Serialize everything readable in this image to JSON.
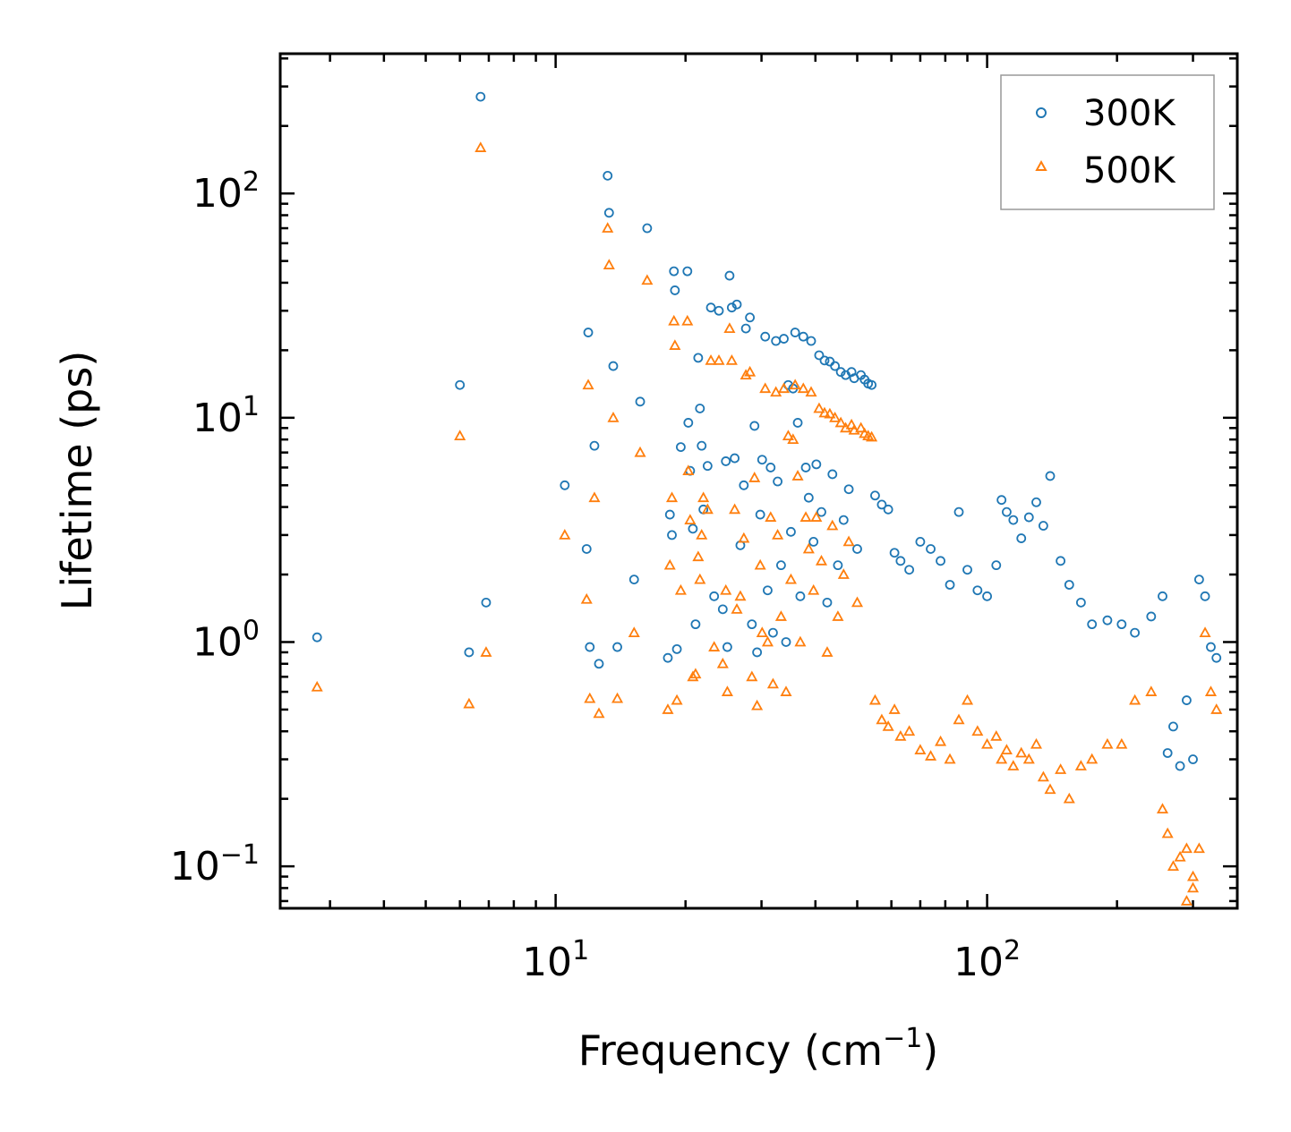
{
  "chart_data": {
    "type": "scatter",
    "title": "",
    "xlabel": "Frequency (cm",
    "xlabel_sup": "−1",
    "xlabel_end": ")",
    "ylabel": "Lifetime (ps)",
    "xscale": "log",
    "yscale": "log",
    "xlim": [
      2.3,
      380
    ],
    "ylim": [
      0.065,
      420
    ],
    "x_tick_labels": [
      {
        "base": "10",
        "exp": "1",
        "value": 10
      },
      {
        "base": "10",
        "exp": "2",
        "value": 100
      }
    ],
    "y_tick_labels": [
      {
        "base": "10",
        "exp": "−1",
        "value": 0.1
      },
      {
        "base": "10",
        "exp": "0",
        "value": 1
      },
      {
        "base": "10",
        "exp": "1",
        "value": 10
      },
      {
        "base": "10",
        "exp": "2",
        "value": 100
      }
    ],
    "legend_position": "top-right",
    "series": [
      {
        "name": "300K",
        "marker": "circle",
        "color": "#1f77b4",
        "points": [
          [
            2.8,
            1.05
          ],
          [
            6.0,
            14
          ],
          [
            6.3,
            0.9
          ],
          [
            6.7,
            270
          ],
          [
            6.9,
            1.5
          ],
          [
            10.5,
            5
          ],
          [
            11.8,
            2.6
          ],
          [
            11.9,
            24
          ],
          [
            12.0,
            0.95
          ],
          [
            12.3,
            7.5
          ],
          [
            12.6,
            0.8
          ],
          [
            13.2,
            120
          ],
          [
            13.3,
            82
          ],
          [
            13.6,
            17
          ],
          [
            13.9,
            0.95
          ],
          [
            15.2,
            1.9
          ],
          [
            15.7,
            11.8
          ],
          [
            16.3,
            70
          ],
          [
            18.2,
            0.85
          ],
          [
            18.4,
            3.7
          ],
          [
            18.6,
            3
          ],
          [
            18.8,
            45
          ],
          [
            18.9,
            37
          ],
          [
            19.1,
            0.93
          ],
          [
            19.5,
            7.4
          ],
          [
            20.2,
            45
          ],
          [
            20.3,
            9.5
          ],
          [
            20.5,
            5.8
          ],
          [
            20.8,
            3.2
          ],
          [
            21.1,
            1.2
          ],
          [
            21.4,
            18.5
          ],
          [
            21.6,
            11
          ],
          [
            21.8,
            7.5
          ],
          [
            22.0,
            3.9
          ],
          [
            22.5,
            6.1
          ],
          [
            22.9,
            31
          ],
          [
            23.3,
            1.6
          ],
          [
            23.9,
            30
          ],
          [
            24.4,
            1.4
          ],
          [
            24.8,
            6.4
          ],
          [
            25.0,
            0.95
          ],
          [
            25.3,
            43
          ],
          [
            25.6,
            31
          ],
          [
            26.0,
            6.6
          ],
          [
            26.3,
            32
          ],
          [
            26.8,
            2.7
          ],
          [
            27.3,
            5
          ],
          [
            27.6,
            25
          ],
          [
            28.2,
            28
          ],
          [
            28.5,
            1.2
          ],
          [
            28.9,
            9.2
          ],
          [
            29.3,
            0.9
          ],
          [
            29.8,
            3.7
          ],
          [
            30.1,
            6.5
          ],
          [
            30.6,
            23
          ],
          [
            31.0,
            1.7
          ],
          [
            31.5,
            6
          ],
          [
            31.9,
            1.1
          ],
          [
            32.4,
            22
          ],
          [
            32.7,
            5.2
          ],
          [
            33.3,
            2.2
          ],
          [
            33.8,
            22.5
          ],
          [
            34.2,
            1
          ],
          [
            34.6,
            14
          ],
          [
            35.1,
            3.1
          ],
          [
            35.5,
            13.5
          ],
          [
            35.9,
            24
          ],
          [
            36.4,
            9.5
          ],
          [
            36.9,
            1.6
          ],
          [
            37.5,
            23
          ],
          [
            38.0,
            6
          ],
          [
            38.6,
            4.4
          ],
          [
            39.1,
            22
          ],
          [
            39.6,
            2.8
          ],
          [
            40.2,
            6.2
          ],
          [
            40.8,
            19
          ],
          [
            41.3,
            3.8
          ],
          [
            42.0,
            18
          ],
          [
            42.6,
            1.5
          ],
          [
            43.2,
            17.8
          ],
          [
            43.8,
            5.6
          ],
          [
            44.4,
            17
          ],
          [
            45.1,
            2.2
          ],
          [
            45.8,
            16
          ],
          [
            46.5,
            3.5
          ],
          [
            47.0,
            15.5
          ],
          [
            47.8,
            4.8
          ],
          [
            48.5,
            16
          ],
          [
            49.2,
            15
          ],
          [
            50.0,
            2.6
          ],
          [
            51.0,
            15.5
          ],
          [
            52.0,
            14.8
          ],
          [
            53.0,
            14.2
          ],
          [
            54.0,
            14
          ],
          [
            55,
            4.5
          ],
          [
            57,
            4.1
          ],
          [
            59,
            3.9
          ],
          [
            61,
            2.5
          ],
          [
            63,
            2.3
          ],
          [
            66,
            2.1
          ],
          [
            70,
            2.8
          ],
          [
            74,
            2.6
          ],
          [
            78,
            2.3
          ],
          [
            82,
            1.8
          ],
          [
            86,
            3.8
          ],
          [
            90,
            2.1
          ],
          [
            95,
            1.7
          ],
          [
            100,
            1.6
          ],
          [
            105,
            2.2
          ],
          [
            108,
            4.3
          ],
          [
            111,
            3.8
          ],
          [
            115,
            3.5
          ],
          [
            120,
            2.9
          ],
          [
            125,
            3.6
          ],
          [
            130,
            4.2
          ],
          [
            135,
            3.3
          ],
          [
            140,
            5.5
          ],
          [
            148,
            2.3
          ],
          [
            155,
            1.8
          ],
          [
            165,
            1.5
          ],
          [
            175,
            1.2
          ],
          [
            190,
            1.25
          ],
          [
            205,
            1.2
          ],
          [
            220,
            1.1
          ],
          [
            240,
            1.3
          ],
          [
            255,
            1.6
          ],
          [
            262,
            0.32
          ],
          [
            270,
            0.42
          ],
          [
            280,
            0.28
          ],
          [
            290,
            0.55
          ],
          [
            300,
            0.3
          ],
          [
            310,
            1.9
          ],
          [
            320,
            1.6
          ],
          [
            330,
            0.95
          ],
          [
            340,
            0.85
          ]
        ]
      },
      {
        "name": "500K",
        "marker": "triangle",
        "color": "#ff7f0e",
        "points": [
          [
            2.8,
            0.63
          ],
          [
            6.0,
            8.3
          ],
          [
            6.3,
            0.53
          ],
          [
            6.7,
            160
          ],
          [
            6.9,
            0.9
          ],
          [
            10.5,
            3
          ],
          [
            11.8,
            1.55
          ],
          [
            11.9,
            14
          ],
          [
            12.0,
            0.56
          ],
          [
            12.3,
            4.4
          ],
          [
            12.6,
            0.48
          ],
          [
            13.2,
            70
          ],
          [
            13.3,
            48
          ],
          [
            13.6,
            10
          ],
          [
            13.9,
            0.56
          ],
          [
            15.2,
            1.1
          ],
          [
            15.7,
            7
          ],
          [
            16.3,
            41
          ],
          [
            18.2,
            0.5
          ],
          [
            18.4,
            2.2
          ],
          [
            18.6,
            4.4
          ],
          [
            18.8,
            27
          ],
          [
            18.9,
            21
          ],
          [
            19.1,
            0.55
          ],
          [
            19.5,
            1.7
          ],
          [
            20.2,
            27
          ],
          [
            20.3,
            5.8
          ],
          [
            20.5,
            3.5
          ],
          [
            20.8,
            0.7
          ],
          [
            21.1,
            0.72
          ],
          [
            21.4,
            2.4
          ],
          [
            21.6,
            1.9
          ],
          [
            21.8,
            3
          ],
          [
            22.0,
            4.4
          ],
          [
            22.5,
            3.9
          ],
          [
            22.9,
            18
          ],
          [
            23.3,
            0.95
          ],
          [
            23.9,
            18
          ],
          [
            24.4,
            0.8
          ],
          [
            24.8,
            1.7
          ],
          [
            25.0,
            0.6
          ],
          [
            25.3,
            25
          ],
          [
            25.6,
            18
          ],
          [
            26.0,
            3.9
          ],
          [
            26.3,
            1.4
          ],
          [
            26.8,
            1.6
          ],
          [
            27.3,
            2.9
          ],
          [
            27.6,
            15.5
          ],
          [
            28.2,
            16
          ],
          [
            28.5,
            0.7
          ],
          [
            28.9,
            5.4
          ],
          [
            29.3,
            0.52
          ],
          [
            29.8,
            2.2
          ],
          [
            30.1,
            1.1
          ],
          [
            30.6,
            13.5
          ],
          [
            31.0,
            1
          ],
          [
            31.5,
            3.6
          ],
          [
            31.9,
            0.65
          ],
          [
            32.4,
            13
          ],
          [
            32.7,
            3
          ],
          [
            33.3,
            1.3
          ],
          [
            33.8,
            13.5
          ],
          [
            34.2,
            0.6
          ],
          [
            34.6,
            8.3
          ],
          [
            35.1,
            1.9
          ],
          [
            35.5,
            8
          ],
          [
            35.9,
            14
          ],
          [
            36.4,
            5.5
          ],
          [
            36.9,
            1
          ],
          [
            37.5,
            13.5
          ],
          [
            38.0,
            3.6
          ],
          [
            38.6,
            2.6
          ],
          [
            39.1,
            13
          ],
          [
            39.6,
            1.7
          ],
          [
            40.2,
            3.6
          ],
          [
            40.8,
            11
          ],
          [
            41.3,
            2.3
          ],
          [
            42.0,
            10.5
          ],
          [
            42.6,
            0.9
          ],
          [
            43.2,
            10.4
          ],
          [
            43.8,
            3.3
          ],
          [
            44.4,
            10
          ],
          [
            45.1,
            1.3
          ],
          [
            45.8,
            9.5
          ],
          [
            46.5,
            2
          ],
          [
            47.0,
            9
          ],
          [
            47.8,
            2.8
          ],
          [
            48.5,
            9.3
          ],
          [
            49.2,
            8.8
          ],
          [
            50.0,
            1.5
          ],
          [
            51.0,
            9
          ],
          [
            52.0,
            8.5
          ],
          [
            53.0,
            8.3
          ],
          [
            54.0,
            8.2
          ],
          [
            55,
            0.55
          ],
          [
            57,
            0.45
          ],
          [
            59,
            0.42
          ],
          [
            61,
            0.5
          ],
          [
            63,
            0.38
          ],
          [
            66,
            0.4
          ],
          [
            70,
            0.33
          ],
          [
            74,
            0.31
          ],
          [
            78,
            0.36
          ],
          [
            82,
            0.3
          ],
          [
            86,
            0.45
          ],
          [
            90,
            0.55
          ],
          [
            95,
            0.4
          ],
          [
            100,
            0.35
          ],
          [
            105,
            0.38
          ],
          [
            108,
            0.3
          ],
          [
            111,
            0.33
          ],
          [
            115,
            0.28
          ],
          [
            120,
            0.32
          ],
          [
            125,
            0.3
          ],
          [
            130,
            0.35
          ],
          [
            135,
            0.25
          ],
          [
            140,
            0.22
          ],
          [
            148,
            0.27
          ],
          [
            155,
            0.2
          ],
          [
            165,
            0.28
          ],
          [
            175,
            0.3
          ],
          [
            190,
            0.35
          ],
          [
            205,
            0.35
          ],
          [
            220,
            0.55
          ],
          [
            240,
            0.6
          ],
          [
            255,
            0.18
          ],
          [
            262,
            0.14
          ],
          [
            270,
            0.1
          ],
          [
            280,
            0.11
          ],
          [
            290,
            0.12
          ],
          [
            300,
            0.09
          ],
          [
            310,
            0.12
          ],
          [
            320,
            1.1
          ],
          [
            330,
            0.6
          ],
          [
            340,
            0.5
          ],
          [
            290,
            0.07
          ],
          [
            300,
            0.08
          ]
        ]
      }
    ]
  }
}
